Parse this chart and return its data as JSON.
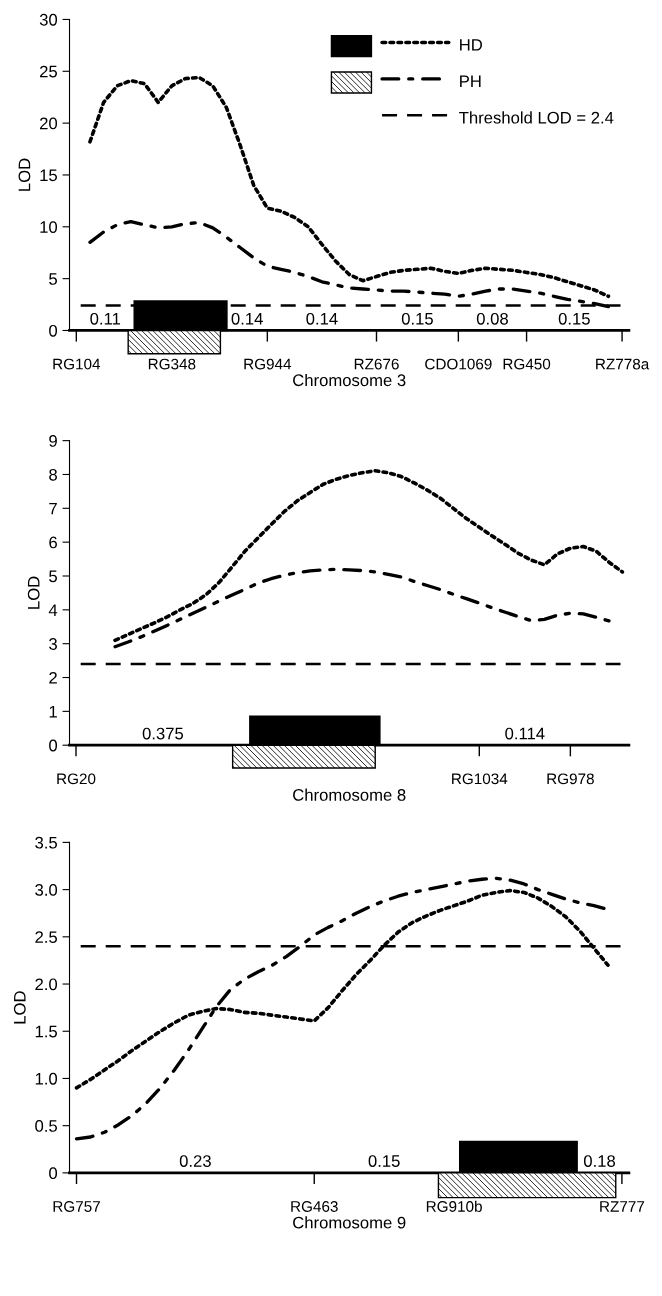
{
  "chart_data": [
    {
      "type": "line",
      "ylabel": "LOD",
      "xlabel": "Chromosome 3",
      "ylim": [
        0,
        30
      ],
      "yticks": [
        0,
        5,
        10,
        15,
        20,
        25,
        30
      ],
      "legend": "top right",
      "categories": [
        "RG104",
        null,
        null,
        null,
        null,
        null,
        null,
        "RG348",
        null,
        null,
        null,
        null,
        null,
        null,
        "RG944",
        null,
        null,
        null,
        null,
        null,
        null,
        null,
        "RZ676",
        null,
        null,
        null,
        null,
        null,
        "CDO1069",
        null,
        null,
        null,
        null,
        "RG450",
        null,
        null,
        null,
        null,
        null,
        null,
        "RZ778a"
      ],
      "series": [
        {
          "name": "HD",
          "color": "#000000",
          "line_style": "dotted",
          "values": [
            null,
            18.2,
            22.0,
            23.6,
            24.1,
            23.8,
            22.0,
            23.6,
            24.3,
            24.4,
            23.6,
            21.5,
            17.9,
            14.0,
            11.8,
            11.5,
            10.9,
            10.0,
            8.3,
            6.7,
            5.4,
            4.8,
            5.2,
            5.6,
            5.8,
            5.9,
            6.0,
            5.7,
            5.5,
            5.8,
            6.0,
            5.9,
            5.8,
            5.6,
            5.4,
            5.1,
            4.7,
            4.3,
            3.9,
            3.3,
            null
          ]
        },
        {
          "name": "PH",
          "color": "#000000",
          "line_style": "dashdot",
          "values": [
            null,
            8.5,
            9.5,
            10.2,
            10.5,
            10.2,
            9.9,
            10.0,
            10.3,
            10.4,
            9.9,
            9.0,
            8.0,
            7.0,
            6.2,
            5.9,
            5.6,
            5.2,
            4.7,
            4.4,
            4.1,
            4.0,
            3.9,
            3.8,
            3.8,
            3.7,
            3.6,
            3.5,
            3.3,
            3.5,
            3.8,
            4.0,
            4.0,
            3.8,
            3.6,
            3.3,
            3.0,
            2.8,
            2.6,
            2.3,
            null
          ]
        }
      ],
      "ref_lines": [
        {
          "axis": "y",
          "value": 2.4,
          "label": "Threshold LOD = 2.4",
          "color": "#000000",
          "line_style": "dashed"
        }
      ],
      "annotations": [
        "0.11",
        "0.14",
        "0.14",
        "0.15",
        "0.08",
        "0.15"
      ]
    },
    {
      "type": "line",
      "ylabel": "LOD",
      "xlabel": "Chromosome 8",
      "ylim": [
        0,
        9
      ],
      "yticks": [
        0,
        1,
        2,
        3,
        4,
        5,
        6,
        7,
        8,
        9
      ],
      "categories": [
        "RG20",
        null,
        null,
        null,
        null,
        null,
        null,
        null,
        null,
        null,
        null,
        null,
        null,
        null,
        null,
        null,
        null,
        null,
        null,
        null,
        null,
        null,
        null,
        null,
        null,
        null,
        null,
        null,
        null,
        null,
        null,
        "RG1034",
        null,
        null,
        null,
        null,
        null,
        null,
        "RG978",
        null,
        null,
        null,
        null
      ],
      "series": [
        {
          "color": "#000000",
          "line_style": "dotted",
          "values": [
            null,
            null,
            null,
            3.1,
            3.27,
            3.44,
            3.61,
            3.79,
            4.0,
            4.19,
            4.45,
            4.81,
            5.27,
            5.74,
            6.13,
            6.52,
            6.9,
            7.22,
            7.47,
            7.71,
            7.86,
            7.97,
            8.05,
            8.11,
            8.05,
            7.94,
            7.75,
            7.54,
            7.3,
            7.0,
            6.7,
            6.44,
            6.18,
            5.93,
            5.67,
            5.47,
            5.33,
            5.65,
            5.82,
            5.87,
            5.73,
            5.4,
            5.12
          ]
        },
        {
          "color": "#000000",
          "line_style": "dashdot",
          "values": [
            null,
            null,
            null,
            2.91,
            3.05,
            3.2,
            3.37,
            3.54,
            3.72,
            3.9,
            4.08,
            4.26,
            4.44,
            4.61,
            4.79,
            4.92,
            5.02,
            5.1,
            5.15,
            5.18,
            5.2,
            5.18,
            5.16,
            5.12,
            5.05,
            4.97,
            4.84,
            4.72,
            4.6,
            4.46,
            4.33,
            4.2,
            4.06,
            3.93,
            3.8,
            3.68,
            3.72,
            3.84,
            3.9,
            3.88,
            3.78,
            3.67,
            null
          ]
        }
      ],
      "ref_lines": [
        {
          "axis": "y",
          "value": 2.4,
          "color": "#000000",
          "line_style": "dashed"
        }
      ],
      "annotations": [
        "0.375",
        "0.114"
      ]
    },
    {
      "type": "line",
      "ylabel": "LOD",
      "xlabel": "Chromosome 9",
      "ylim": [
        0,
        3.5
      ],
      "yticks": [
        0,
        {
          "value": 0.5,
          "label": "0.5"
        },
        {
          "value": 1,
          "label": "1.0"
        },
        {
          "value": 1.5,
          "label": "1.5"
        },
        {
          "value": 2,
          "label": "2.0"
        },
        {
          "value": 2.5,
          "label": "2.5"
        },
        {
          "value": 3,
          "label": "3.0"
        },
        {
          "value": 3.5,
          "label": "3.5"
        }
      ],
      "categories": [
        "RG757",
        null,
        null,
        null,
        null,
        null,
        null,
        null,
        null,
        null,
        null,
        null,
        null,
        null,
        null,
        null,
        null,
        "RG463",
        null,
        null,
        null,
        null,
        null,
        null,
        null,
        null,
        null,
        "RG910b",
        null,
        null,
        null,
        null,
        null,
        null,
        null,
        null,
        null,
        null,
        null,
        "RZ777"
      ],
      "series": [
        {
          "color": "#000000",
          "line_style": "dotted",
          "values": [
            0.9,
            0.99,
            1.09,
            1.19,
            1.3,
            1.4,
            1.5,
            1.59,
            1.67,
            1.71,
            1.74,
            1.73,
            1.7,
            1.69,
            1.67,
            1.65,
            1.63,
            1.61,
            1.75,
            1.93,
            2.1,
            2.25,
            2.41,
            2.55,
            2.65,
            2.72,
            2.78,
            2.83,
            2.88,
            2.94,
            2.97,
            2.99,
            2.97,
            2.91,
            2.82,
            2.71,
            2.56,
            2.38,
            2.2,
            null
          ]
        },
        {
          "color": "#000000",
          "line_style": "dashdot",
          "values": [
            0.36,
            0.38,
            0.43,
            0.51,
            0.61,
            0.74,
            0.9,
            1.09,
            1.3,
            1.53,
            1.76,
            1.94,
            2.05,
            2.13,
            2.2,
            2.29,
            2.4,
            2.52,
            2.6,
            2.67,
            2.75,
            2.82,
            2.88,
            2.93,
            2.97,
            3.0,
            3.03,
            3.06,
            3.09,
            3.11,
            3.12,
            3.1,
            3.06,
            3.0,
            2.95,
            2.9,
            2.86,
            2.83,
            2.79,
            null
          ]
        }
      ],
      "ref_lines": [
        {
          "axis": "y",
          "value": 2.4,
          "color": "#000000",
          "line_style": "dashed"
        }
      ],
      "annotations": [
        "0.23",
        "0.15",
        "0.18"
      ]
    }
  ]
}
